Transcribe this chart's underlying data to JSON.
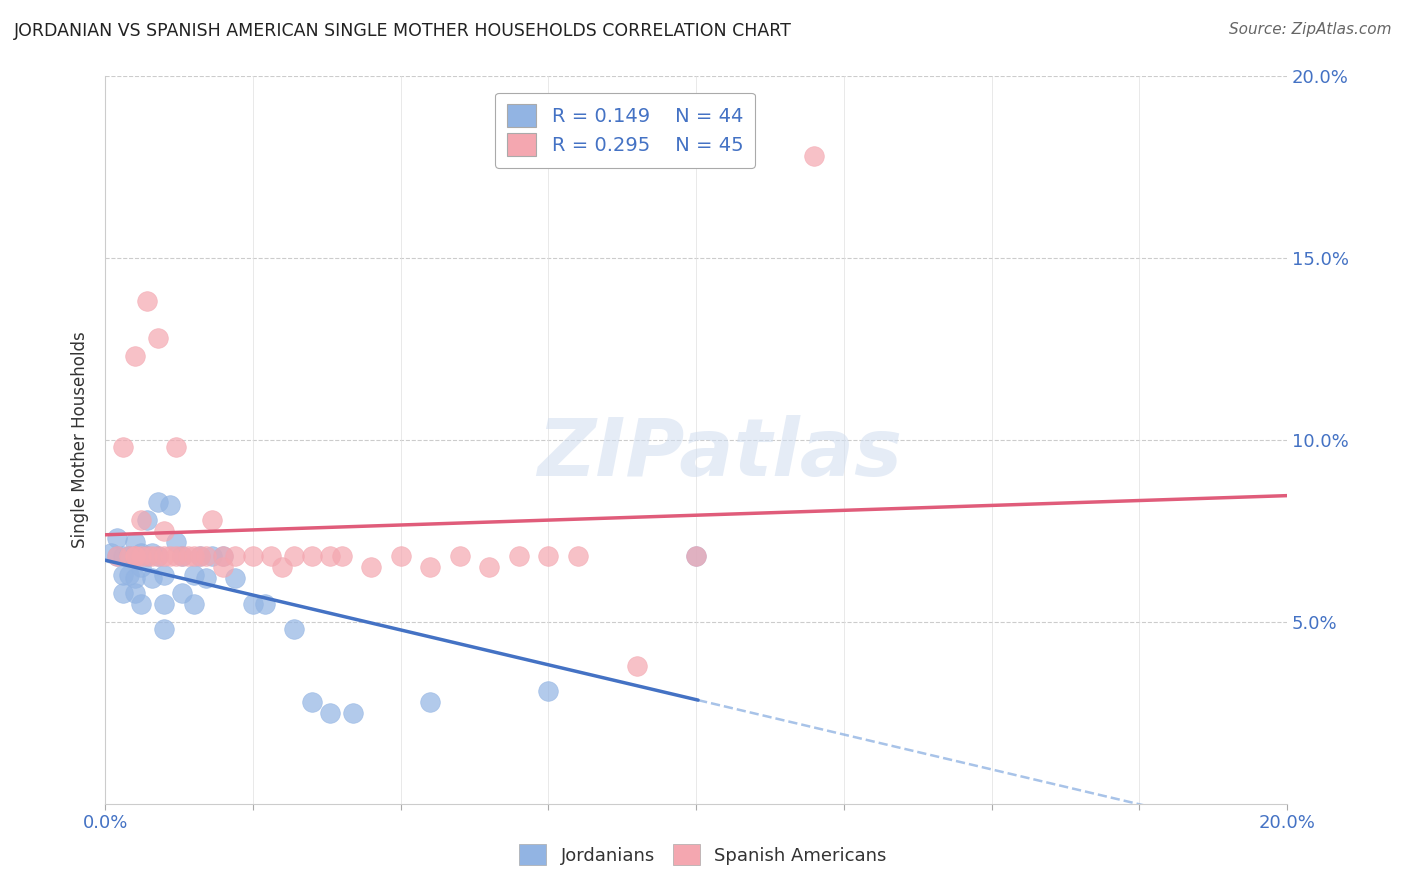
{
  "title": "JORDANIAN VS SPANISH AMERICAN SINGLE MOTHER HOUSEHOLDS CORRELATION CHART",
  "source": "Source: ZipAtlas.com",
  "ylabel": "Single Mother Households",
  "xlim": [
    0.0,
    0.2
  ],
  "ylim": [
    0.0,
    0.2
  ],
  "legend_R1": "R = 0.149",
  "legend_N1": "N = 44",
  "legend_R2": "R = 0.295",
  "legend_N2": "N = 45",
  "color_jordan": "#92b4e3",
  "color_spain": "#f4a7b0",
  "color_trend_jordan": "#4472c4",
  "color_trend_spain": "#e05c7a",
  "color_dashed": "#92b4e3",
  "watermark": "ZIPatlas",
  "jordanians_x": [
    0.001,
    0.002,
    0.002,
    0.003,
    0.003,
    0.003,
    0.004,
    0.004,
    0.005,
    0.005,
    0.005,
    0.005,
    0.006,
    0.006,
    0.006,
    0.007,
    0.007,
    0.008,
    0.008,
    0.009,
    0.009,
    0.01,
    0.01,
    0.01,
    0.011,
    0.012,
    0.013,
    0.013,
    0.015,
    0.015,
    0.016,
    0.017,
    0.018,
    0.02,
    0.022,
    0.025,
    0.027,
    0.032,
    0.035,
    0.038,
    0.042,
    0.055,
    0.075,
    0.1
  ],
  "jordanians_y": [
    0.069,
    0.068,
    0.073,
    0.068,
    0.063,
    0.058,
    0.068,
    0.063,
    0.072,
    0.068,
    0.062,
    0.058,
    0.069,
    0.065,
    0.055,
    0.078,
    0.068,
    0.069,
    0.062,
    0.083,
    0.068,
    0.063,
    0.055,
    0.048,
    0.082,
    0.072,
    0.068,
    0.058,
    0.055,
    0.063,
    0.068,
    0.062,
    0.068,
    0.068,
    0.062,
    0.055,
    0.055,
    0.048,
    0.028,
    0.025,
    0.025,
    0.028,
    0.031,
    0.068
  ],
  "spanish_x": [
    0.002,
    0.003,
    0.004,
    0.005,
    0.005,
    0.005,
    0.006,
    0.006,
    0.007,
    0.007,
    0.008,
    0.009,
    0.009,
    0.01,
    0.01,
    0.011,
    0.012,
    0.012,
    0.013,
    0.014,
    0.015,
    0.016,
    0.017,
    0.018,
    0.02,
    0.02,
    0.022,
    0.025,
    0.028,
    0.03,
    0.032,
    0.035,
    0.038,
    0.04,
    0.045,
    0.05,
    0.055,
    0.06,
    0.065,
    0.07,
    0.075,
    0.08,
    0.09,
    0.1,
    0.12
  ],
  "spanish_y": [
    0.068,
    0.098,
    0.068,
    0.068,
    0.123,
    0.068,
    0.068,
    0.078,
    0.068,
    0.138,
    0.068,
    0.068,
    0.128,
    0.068,
    0.075,
    0.068,
    0.068,
    0.098,
    0.068,
    0.068,
    0.068,
    0.068,
    0.068,
    0.078,
    0.065,
    0.068,
    0.068,
    0.068,
    0.068,
    0.065,
    0.068,
    0.068,
    0.068,
    0.068,
    0.065,
    0.068,
    0.065,
    0.068,
    0.065,
    0.068,
    0.068,
    0.068,
    0.038,
    0.068,
    0.178
  ]
}
